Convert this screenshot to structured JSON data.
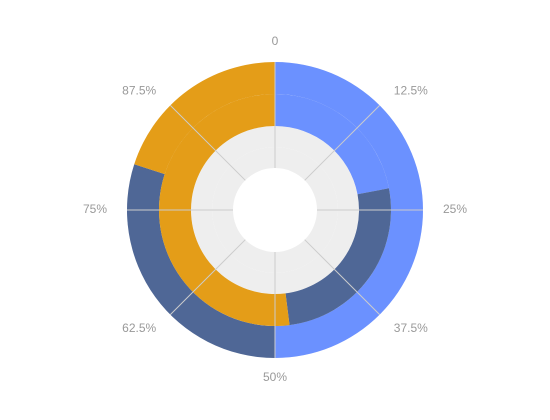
{
  "chart_data": {
    "type": "radial-bar",
    "angle_axis": {
      "min": 0,
      "max": 1,
      "tick_labels": [
        "0",
        "12.5%",
        "25%",
        "37.5%",
        "50%",
        "62.5%",
        "75%",
        "87.5%"
      ],
      "split_lines": true
    },
    "rings": [
      {
        "name": "",
        "segments": [
          {
            "color": "#6b91ff",
            "value": 0.5
          },
          {
            "color": "#4f6796",
            "value": 0.3
          },
          {
            "color": "#e49d18",
            "value": 0.2
          }
        ]
      },
      {
        "name": "",
        "segments": [
          {
            "color": "#6b91ff",
            "value": 0.22
          },
          {
            "color": "#4f6796",
            "value": 0.26
          },
          {
            "color": "#e49d18",
            "value": 0.52
          }
        ]
      },
      {
        "name": "",
        "segments": [
          {
            "color": "#6b91ff",
            "value": 0.0
          },
          {
            "color": "#4f6796",
            "value": 0.0
          },
          {
            "color": "#e49d18",
            "value": 0.0
          }
        ]
      },
      {
        "name": "",
        "segments": [
          {
            "color": "#6b91ff",
            "value": 0.0
          },
          {
            "color": "#4f6796",
            "value": 0.0
          },
          {
            "color": "#e49d18",
            "value": 0.0
          }
        ]
      }
    ],
    "track_color": "#eeeeee",
    "grid_color": "#cccccc"
  }
}
